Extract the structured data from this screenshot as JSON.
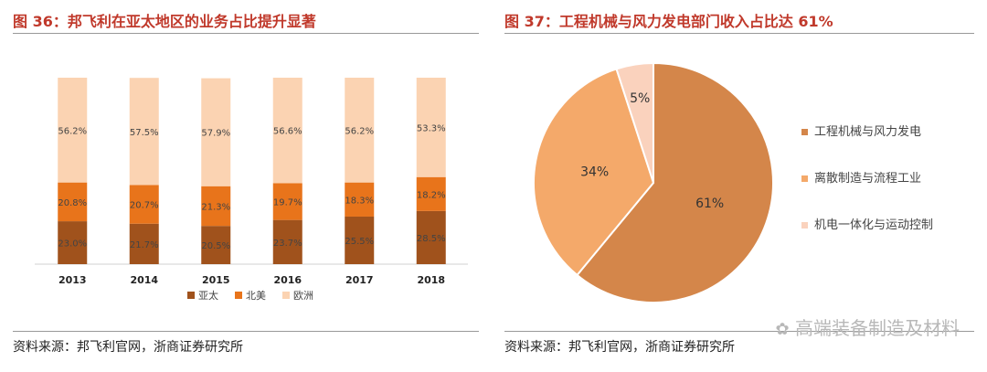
{
  "left_title": "图 36：邦飞利在亚太地区的业务占比提升显著",
  "right_title": "图 37：工程机械与风力发电部门收入占比达 61%",
  "left_source": "资料来源：邦飞利官网，浙商证券研究所",
  "right_source": "资料来源：邦飞利官网，浙商证券研究所",
  "watermark": "高端装备制造及材料",
  "colors": {
    "asia": "#a0521c",
    "na": "#e8741b",
    "eu": "#fbd3b2",
    "pie1": "#d4864a",
    "pie2": "#f4a96a",
    "pie3": "#fad2bd",
    "title": "#c0392b"
  },
  "chart_data": [
    {
      "type": "bar",
      "stacked": true,
      "categories": [
        "2013",
        "2014",
        "2015",
        "2016",
        "2017",
        "2018"
      ],
      "series": [
        {
          "name": "亚太",
          "values": [
            23.0,
            21.7,
            20.5,
            23.7,
            25.5,
            28.5
          ],
          "labels": [
            "23.0%",
            "21.7%",
            "20.5%",
            "23.7%",
            "25.5%",
            "28.5%"
          ]
        },
        {
          "name": "北美",
          "values": [
            20.8,
            20.7,
            21.3,
            19.7,
            18.3,
            18.2
          ],
          "labels": [
            "20.8%",
            "20.7%",
            "21.3%",
            "19.7%",
            "18.3%",
            "18.2%"
          ]
        },
        {
          "name": "欧洲",
          "values": [
            56.2,
            57.5,
            57.9,
            56.6,
            56.2,
            53.3
          ],
          "labels": [
            "56.2%",
            "57.5%",
            "57.9%",
            "56.6%",
            "56.2%",
            "53.3%"
          ]
        }
      ],
      "ylim": [
        0,
        100
      ],
      "legend": "bottom"
    },
    {
      "type": "pie",
      "categories": [
        "工程机械与风力发电",
        "离散制造与流程工业",
        "机电一体化与运动控制"
      ],
      "values": [
        61,
        34,
        5
      ],
      "labels": [
        "61%",
        "34%",
        "5%"
      ],
      "legend": "right"
    }
  ]
}
